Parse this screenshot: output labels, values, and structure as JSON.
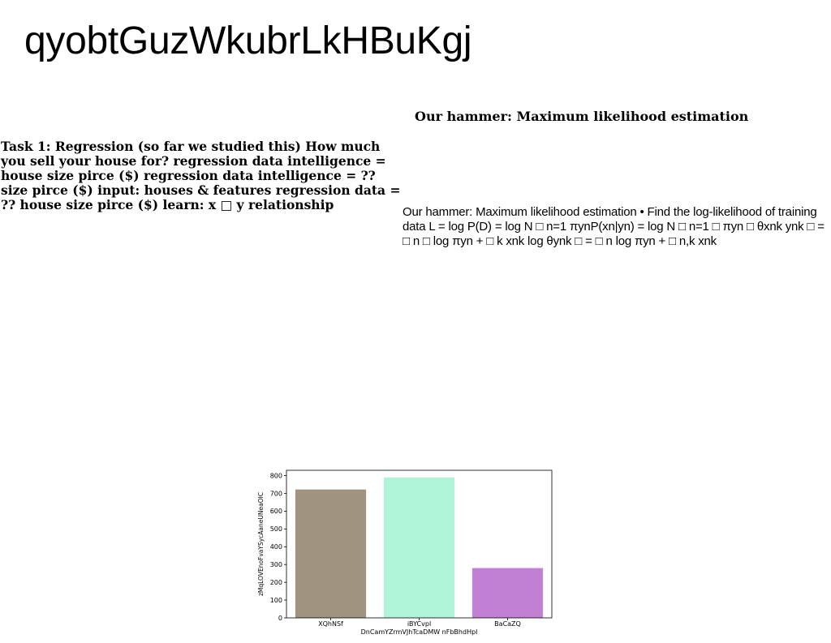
{
  "page": {
    "title": "qyobtGuzWkubrLkHBuKgj"
  },
  "left_block": {
    "text": "Task 1: Regression (so far we studied this) How much you sell your house for? regression data intelligence = house size pirce ($) regression data intelligence = ?? size pirce ($) input: houses & features regression data = ?? house size pirce ($) learn: x □ y relationship"
  },
  "right_block": {
    "title": "Our hammer: Maximum likelihood estimation",
    "body": "Our hammer: Maximum likelihood estimation • Find the log-likelihood of training data L = log P(D) = log N □ n=1 πynP(xn|yn) = log N □ n=1 □ πyn □ θxnk ynk □ = □ n □ log πyn + □ k xnk log θynk □ = □ n log πyn + □ n,k xnk"
  },
  "chart_data": {
    "type": "bar",
    "categories": [
      "XQhNSf",
      "iBYCvpl",
      "BaCaZQ"
    ],
    "values": [
      722,
      790,
      280
    ],
    "colors": [
      "#a09380",
      "#aff4d8",
      "#c280d4"
    ],
    "xlabel": "DnCamYZrmVJhTcaDMW nFbBhdHpl",
    "ylabel": "zMqLOVEnoFvaYSycAaneUNeaOIC",
    "ylim": [
      0,
      830
    ],
    "yticks": [
      0,
      100,
      200,
      300,
      400,
      500,
      600,
      700,
      800
    ],
    "grid": false,
    "legend": "none"
  }
}
